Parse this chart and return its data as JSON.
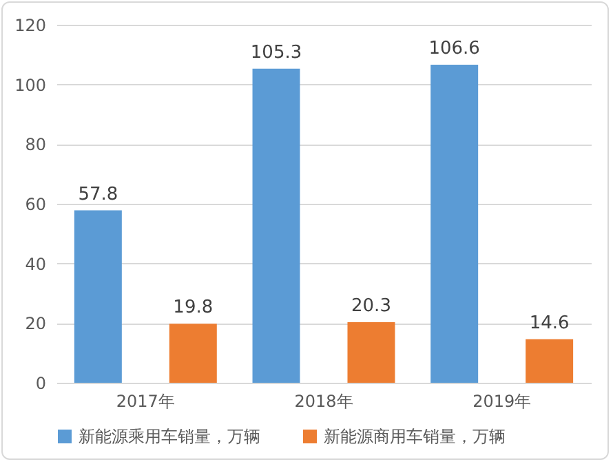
{
  "chart_data": {
    "type": "bar",
    "categories": [
      "2017年",
      "2018年",
      "2019年"
    ],
    "series": [
      {
        "name": "新能源乘用车销量，万辆",
        "color": "#5b9bd5",
        "values": [
          57.8,
          105.3,
          106.6
        ]
      },
      {
        "name": "新能源商用车销量，万辆",
        "color": "#ed7d31",
        "values": [
          19.8,
          20.3,
          14.6
        ]
      }
    ],
    "ylim": [
      0,
      120
    ],
    "yticks": [
      0,
      20,
      40,
      60,
      80,
      100,
      120
    ],
    "grid": "y",
    "legend": "bottom",
    "data_labels": true
  }
}
